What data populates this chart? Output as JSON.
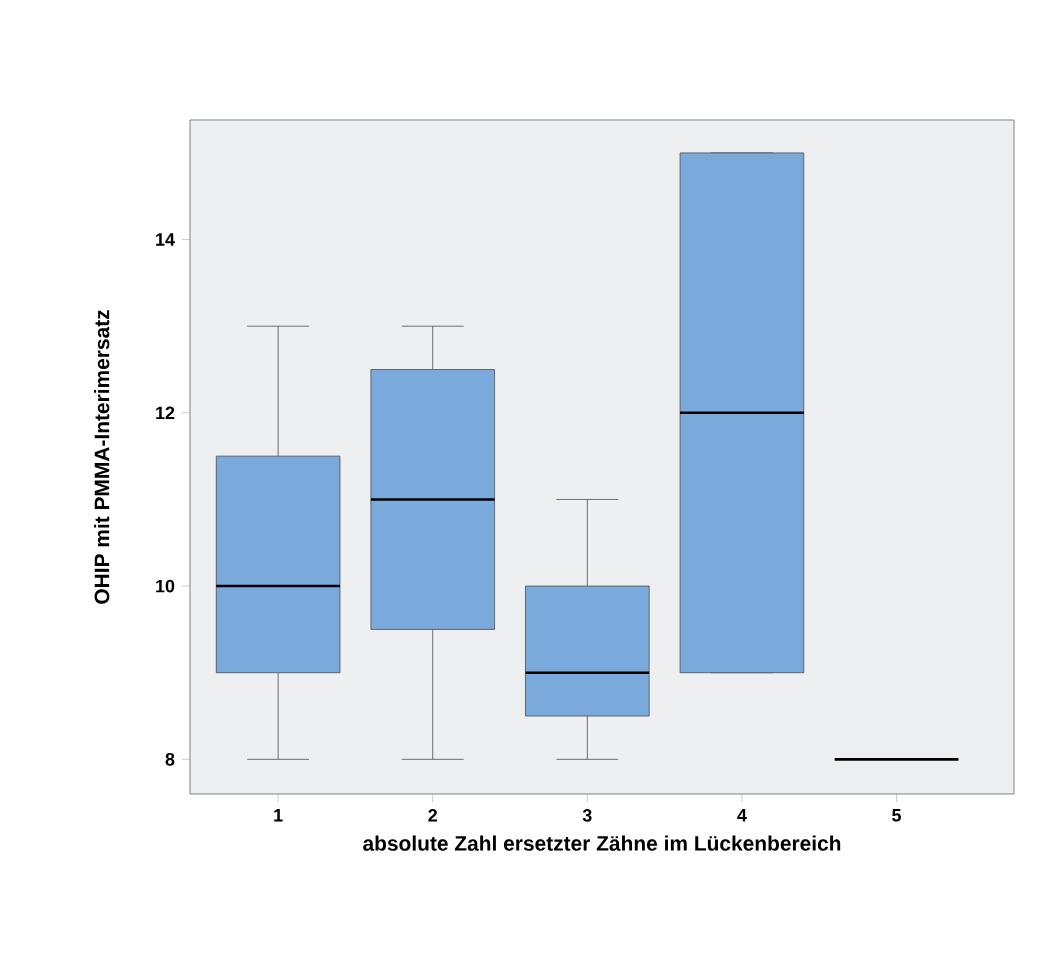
{
  "chart_data": {
    "type": "box",
    "xlabel": "absolute Zahl ersetzter Zähne im Lückenbereich",
    "ylabel": "OHIP mit PMMA-Interimersatz",
    "categories": [
      "1",
      "2",
      "3",
      "4",
      "5"
    ],
    "color": "#7aaadc",
    "boxes": [
      {
        "low": 8,
        "q1": 9,
        "median": 10,
        "q3": 11.5,
        "high": 13
      },
      {
        "low": 8,
        "q1": 9.5,
        "median": 11,
        "q3": 12.5,
        "high": 13
      },
      {
        "low": 8,
        "q1": 8.5,
        "median": 9,
        "q3": 10,
        "high": 11
      },
      {
        "low": 9,
        "q1": 9,
        "median": 12,
        "q3": 15,
        "high": 15
      },
      {
        "low": 8,
        "q1": 8,
        "median": 8,
        "q3": 8,
        "high": 8
      }
    ],
    "ylim": [
      7.6,
      15.38
    ],
    "yticks": [
      8,
      10,
      12,
      14
    ]
  }
}
